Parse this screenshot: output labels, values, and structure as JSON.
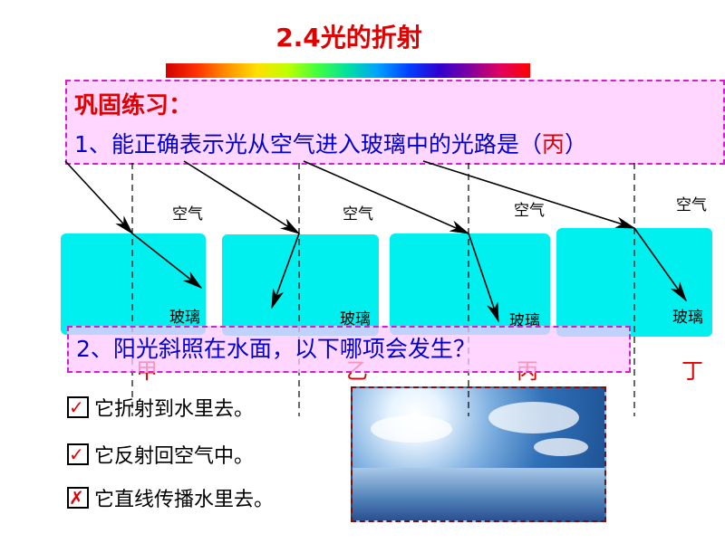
{
  "title": "2.4光的折射",
  "q1": {
    "heading": "巩固练习：",
    "text": "1、能正确表示光从空气进入玻璃中的光路是（",
    "answer": "丙",
    "close": "）"
  },
  "diagrams": [
    {
      "air": "空气",
      "glass": "玻璃",
      "tag": "甲"
    },
    {
      "air": "空气",
      "glass": "玻璃",
      "tag": "乙"
    },
    {
      "air": "空气",
      "glass": "玻璃",
      "tag": "丙"
    },
    {
      "air": "空气",
      "glass": "玻璃",
      "tag": "丁"
    }
  ],
  "q2": {
    "text": "2、阳光斜照在水面，以下哪项会发生？"
  },
  "options": [
    {
      "text": "它折射到水里去。",
      "mark": "✓",
      "checked": true
    },
    {
      "text": "它反射回空气中。",
      "mark": "✓",
      "checked": true
    },
    {
      "text": "它直线传播水里去。",
      "mark": "✗",
      "checked": false
    }
  ],
  "colors": {
    "title": "#e00000",
    "question": "#0000d0",
    "glass": "#00f0f0",
    "box_border": "#d020d0"
  }
}
